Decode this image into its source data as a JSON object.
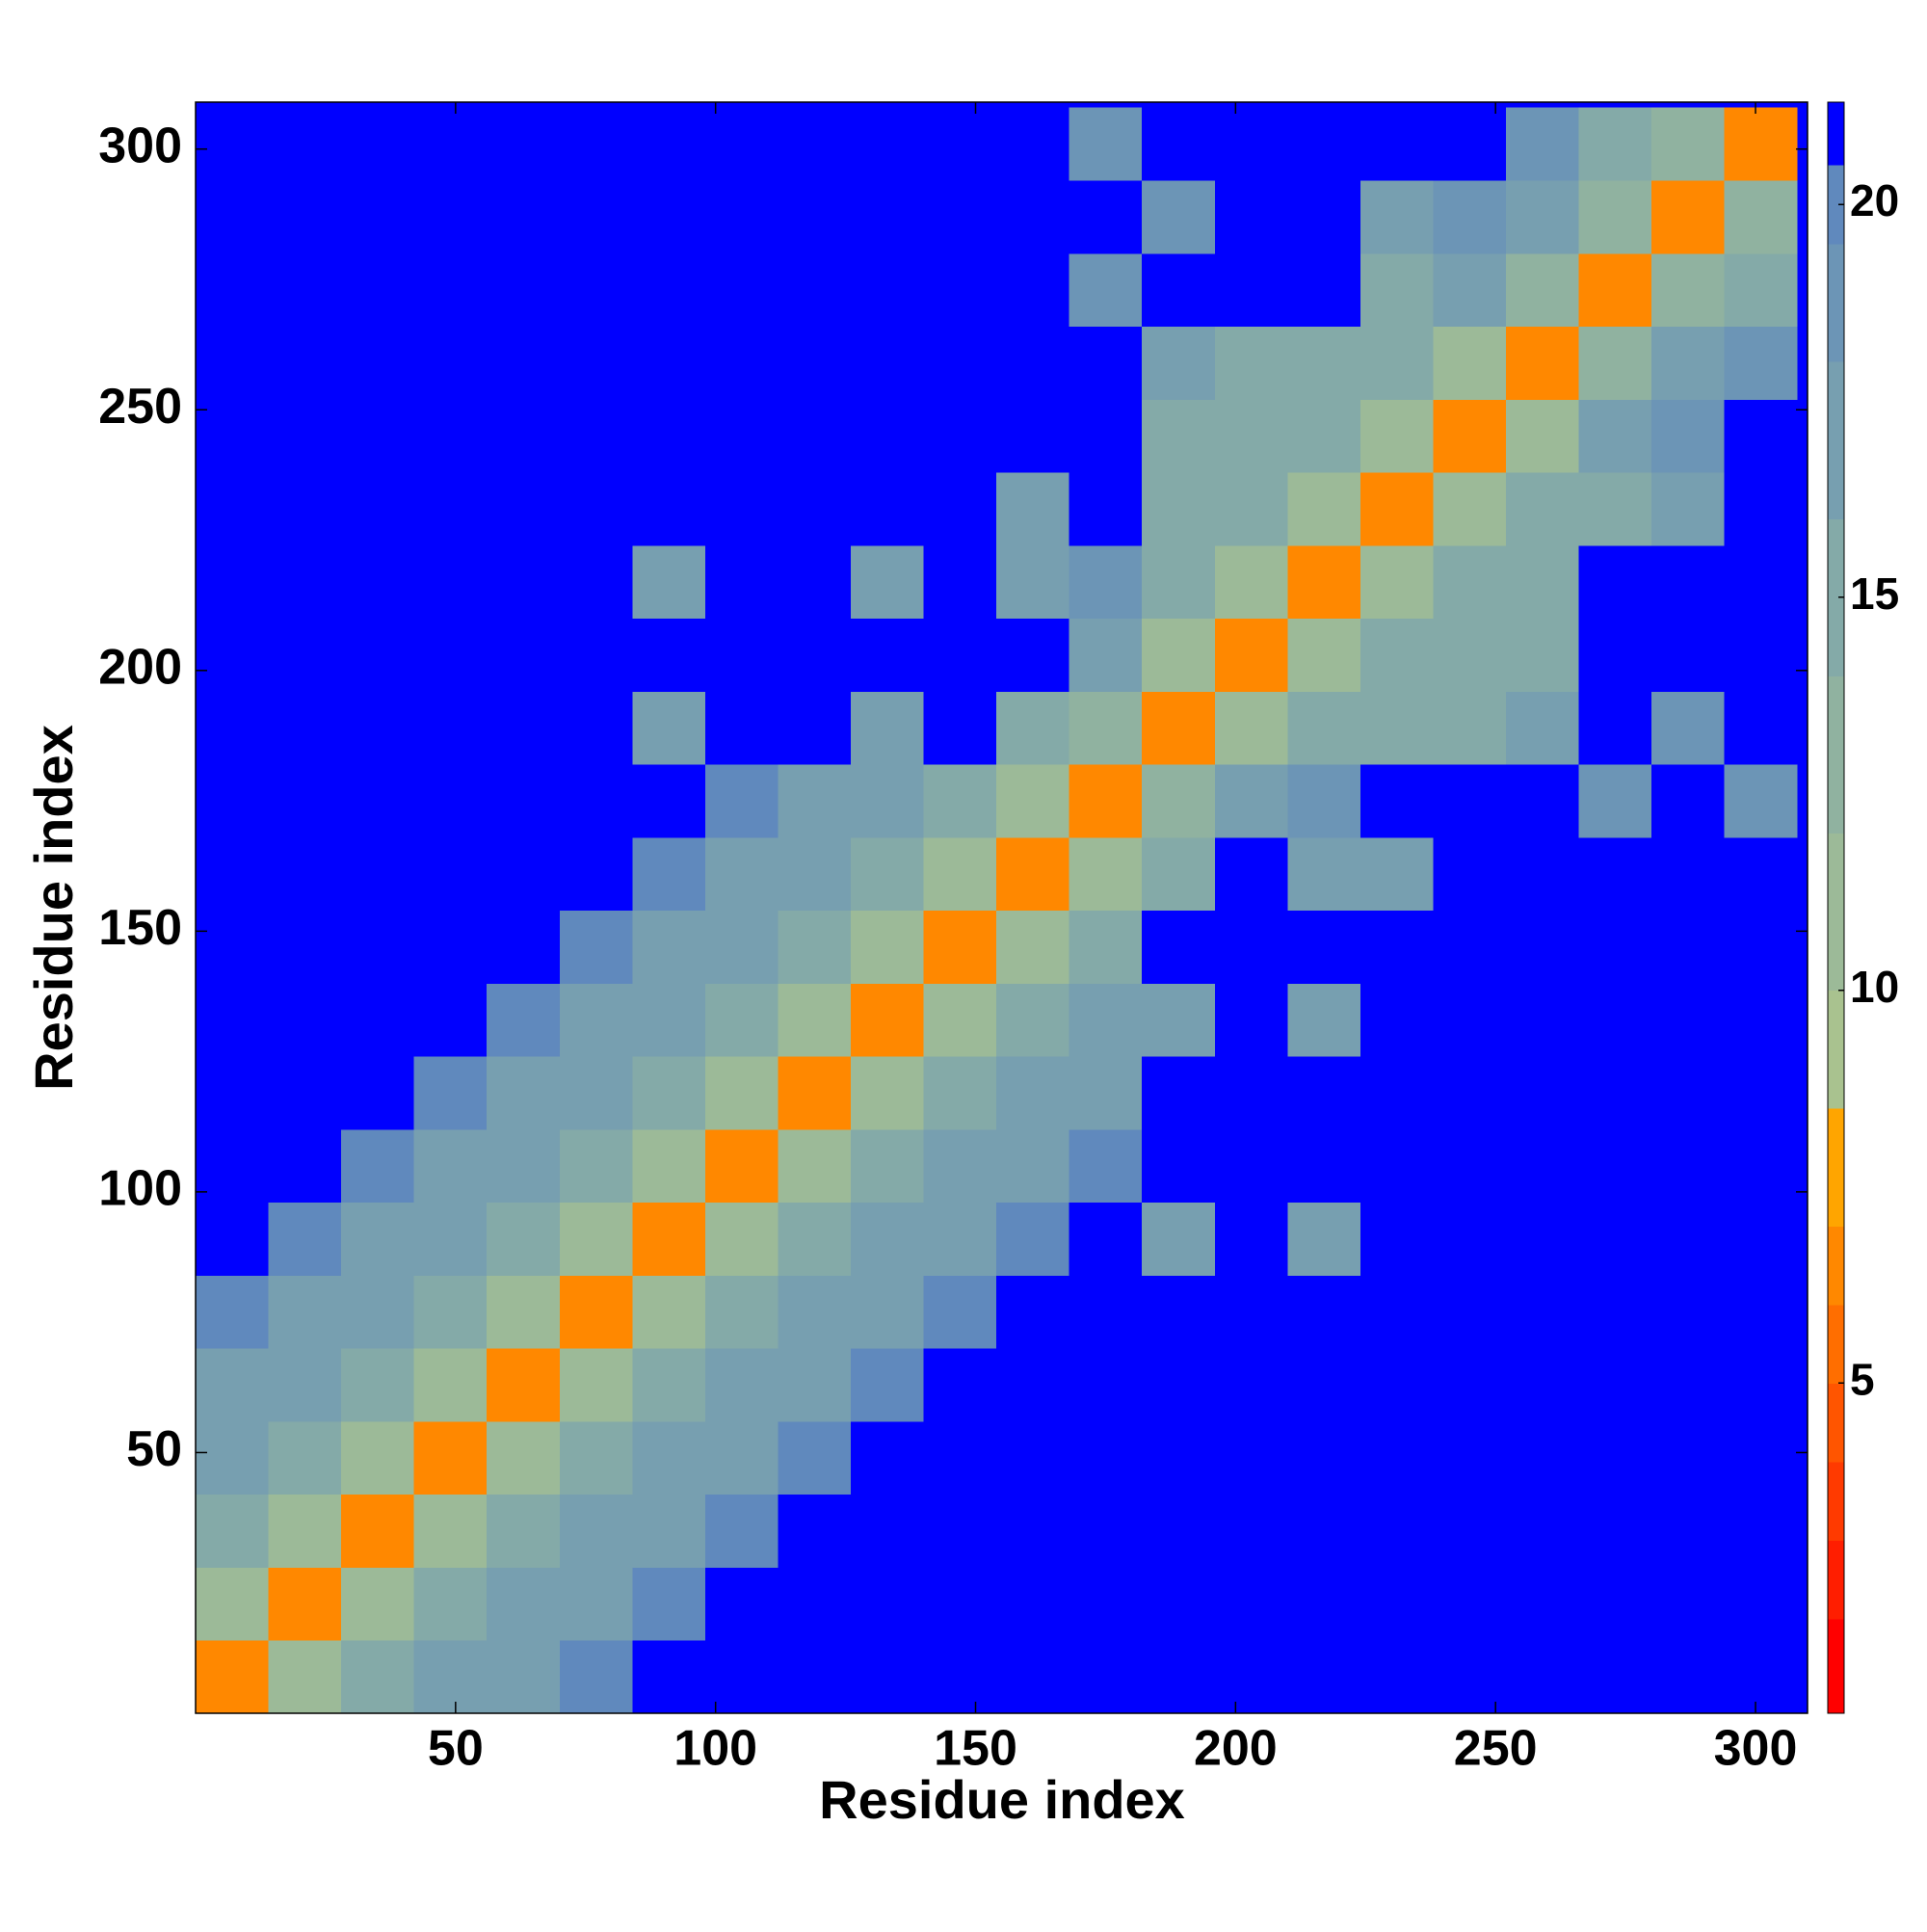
{
  "chart_data": {
    "type": "heatmap",
    "x_label": "Residue index",
    "y_label": "Residue index",
    "x_bins": [
      0,
      14,
      28,
      42,
      56,
      70,
      84,
      98,
      112,
      126,
      140,
      154,
      168,
      182,
      196,
      210,
      224,
      238,
      252,
      266,
      280,
      294,
      308
    ],
    "y_bins": [
      0,
      14,
      28,
      42,
      56,
      70,
      84,
      98,
      112,
      126,
      140,
      154,
      168,
      182,
      196,
      210,
      224,
      238,
      252,
      266,
      280,
      294,
      308
    ],
    "xlim": [
      0,
      310
    ],
    "ylim": [
      0,
      309
    ],
    "xticks": [
      50,
      100,
      150,
      200,
      250,
      300
    ],
    "yticks": [
      50,
      100,
      150,
      200,
      250,
      300
    ],
    "values": [
      [
        7,
        12,
        15,
        17,
        18,
        20,
        21,
        21,
        21,
        21,
        21,
        21,
        21,
        21,
        21,
        21,
        21,
        21,
        21,
        21,
        21,
        21
      ],
      [
        12,
        7,
        12,
        15,
        17,
        18,
        20,
        21,
        21,
        21,
        21,
        21,
        21,
        21,
        21,
        21,
        21,
        21,
        21,
        21,
        21,
        21
      ],
      [
        15,
        12,
        7,
        12,
        15,
        17,
        18,
        20,
        21,
        21,
        21,
        21,
        21,
        21,
        21,
        21,
        21,
        21,
        21,
        21,
        21,
        21
      ],
      [
        17,
        15,
        12,
        7,
        12,
        15,
        17,
        18,
        20,
        21,
        21,
        21,
        21,
        21,
        21,
        21,
        21,
        21,
        21,
        21,
        21,
        21
      ],
      [
        18,
        17,
        15,
        12,
        7,
        12,
        15,
        17,
        18,
        20,
        21,
        21,
        21,
        21,
        21,
        21,
        21,
        21,
        21,
        21,
        21,
        21
      ],
      [
        20,
        18,
        17,
        15,
        12,
        7,
        12,
        15,
        17,
        18,
        20,
        21,
        21,
        21,
        21,
        21,
        21,
        21,
        21,
        21,
        21,
        21
      ],
      [
        21,
        20,
        18,
        17,
        15,
        12,
        7,
        12,
        15,
        17,
        18,
        20,
        21,
        18,
        21,
        17,
        21,
        21,
        21,
        21,
        21,
        21
      ],
      [
        21,
        21,
        20,
        18,
        17,
        15,
        12,
        7,
        12,
        15,
        17,
        18,
        20,
        21,
        21,
        21,
        21,
        21,
        21,
        21,
        21,
        21
      ],
      [
        21,
        21,
        21,
        20,
        18,
        17,
        15,
        12,
        7,
        12,
        15,
        17,
        18,
        21,
        21,
        21,
        21,
        21,
        21,
        21,
        21,
        21
      ],
      [
        21,
        21,
        21,
        21,
        20,
        18,
        17,
        15,
        12,
        7,
        12,
        15,
        17,
        18,
        21,
        17,
        21,
        21,
        21,
        21,
        21,
        21
      ],
      [
        21,
        21,
        21,
        21,
        21,
        20,
        18,
        17,
        15,
        12,
        7,
        12,
        15,
        21,
        21,
        21,
        21,
        21,
        21,
        21,
        21,
        21
      ],
      [
        21,
        21,
        21,
        21,
        21,
        21,
        20,
        18,
        17,
        15,
        12,
        7,
        12,
        16,
        21,
        17,
        18,
        21,
        21,
        21,
        21,
        21
      ],
      [
        21,
        21,
        21,
        21,
        21,
        21,
        21,
        20,
        18,
        17,
        15,
        12,
        7,
        13,
        18,
        19,
        21,
        21,
        21,
        19,
        21,
        19
      ],
      [
        21,
        21,
        21,
        21,
        21,
        21,
        18,
        21,
        21,
        18,
        21,
        16,
        13,
        7,
        12,
        15,
        15,
        15,
        17,
        21,
        19,
        21
      ],
      [
        21,
        21,
        21,
        21,
        21,
        21,
        21,
        21,
        21,
        21,
        21,
        21,
        18,
        12,
        7,
        12,
        15,
        15,
        15,
        21,
        21,
        21
      ],
      [
        21,
        21,
        21,
        21,
        21,
        21,
        17,
        21,
        21,
        17,
        21,
        17,
        19,
        15,
        12,
        7,
        12,
        15,
        15,
        21,
        21,
        21
      ],
      [
        21,
        21,
        21,
        21,
        21,
        21,
        21,
        21,
        21,
        21,
        21,
        18,
        21,
        15,
        15,
        12,
        7,
        12,
        15,
        16,
        18,
        21
      ],
      [
        21,
        21,
        21,
        21,
        21,
        21,
        21,
        21,
        21,
        21,
        21,
        21,
        21,
        15,
        15,
        15,
        12,
        7,
        12,
        17,
        19,
        21
      ],
      [
        21,
        21,
        21,
        21,
        21,
        21,
        21,
        21,
        21,
        21,
        21,
        21,
        21,
        17,
        15,
        15,
        15,
        12,
        7,
        14,
        17,
        19
      ],
      [
        21,
        21,
        21,
        21,
        21,
        21,
        21,
        21,
        21,
        21,
        21,
        21,
        19,
        21,
        21,
        21,
        16,
        17,
        14,
        7,
        13,
        16
      ],
      [
        21,
        21,
        21,
        21,
        21,
        21,
        21,
        21,
        21,
        21,
        21,
        21,
        21,
        19,
        21,
        21,
        18,
        19,
        17,
        13,
        7,
        13
      ],
      [
        21,
        21,
        21,
        21,
        21,
        21,
        21,
        21,
        21,
        21,
        21,
        21,
        19,
        21,
        21,
        21,
        21,
        21,
        19,
        16,
        13,
        7
      ]
    ],
    "color_levels": [
      0.8,
      2,
      3,
      4,
      5,
      6,
      7,
      8.5,
      10,
      12,
      14,
      16,
      18,
      19.5,
      20.5,
      21.3
    ],
    "color_list": [
      "#ff0000",
      "#ff1e00",
      "#ff3a00",
      "#ff5500",
      "#ff6e00",
      "#ff8800",
      "#ffa500",
      "#a9c28f",
      "#9cba98",
      "#90b2a0",
      "#84aaa8",
      "#779fb0",
      "#6c95b6",
      "#6089bd",
      "#0000ff"
    ],
    "colorbar_ticks": [
      5,
      10,
      15,
      20
    ]
  }
}
